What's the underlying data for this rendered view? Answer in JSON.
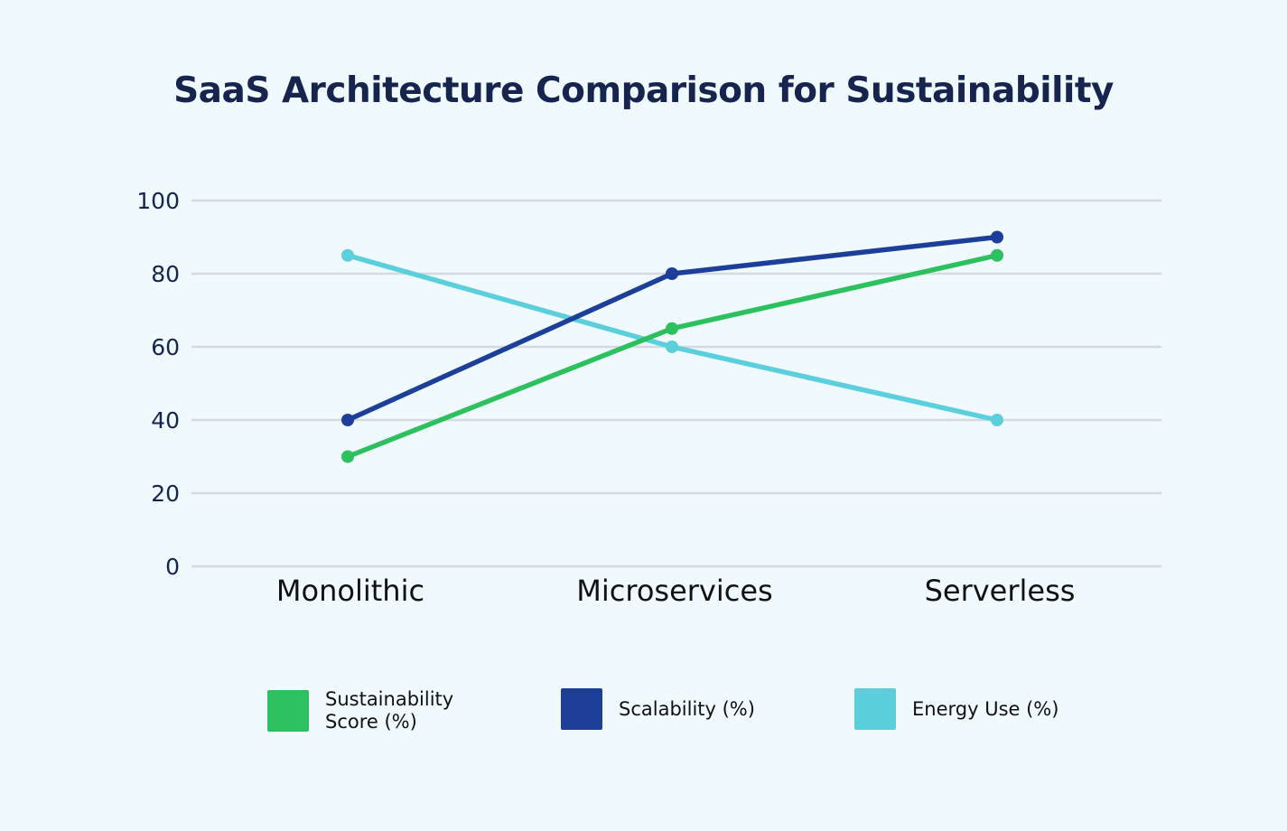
{
  "chart_data": {
    "type": "line",
    "title": "SaaS Architecture Comparison for Sustainability",
    "xlabel": "",
    "ylabel": "",
    "categories": [
      "Monolithic",
      "Microservices",
      "Serverless"
    ],
    "ylim": [
      0,
      100
    ],
    "yticks": [
      0,
      20,
      40,
      60,
      80,
      100
    ],
    "grid": true,
    "legend_position": "bottom",
    "series": [
      {
        "name": "Sustainability Score (%)",
        "legend_lines": [
          "Sustainability",
          "Score (%)"
        ],
        "color": "#2dc05f",
        "values": [
          30,
          65,
          85
        ]
      },
      {
        "name": "Scalability (%)",
        "legend_lines": [
          "Scalability (%)"
        ],
        "color": "#1e3f99",
        "values": [
          40,
          80,
          90
        ]
      },
      {
        "name": "Energy Use (%)",
        "legend_lines": [
          "Energy Use (%)"
        ],
        "color": "#5ccfdc",
        "values": [
          85,
          60,
          40
        ]
      }
    ]
  }
}
